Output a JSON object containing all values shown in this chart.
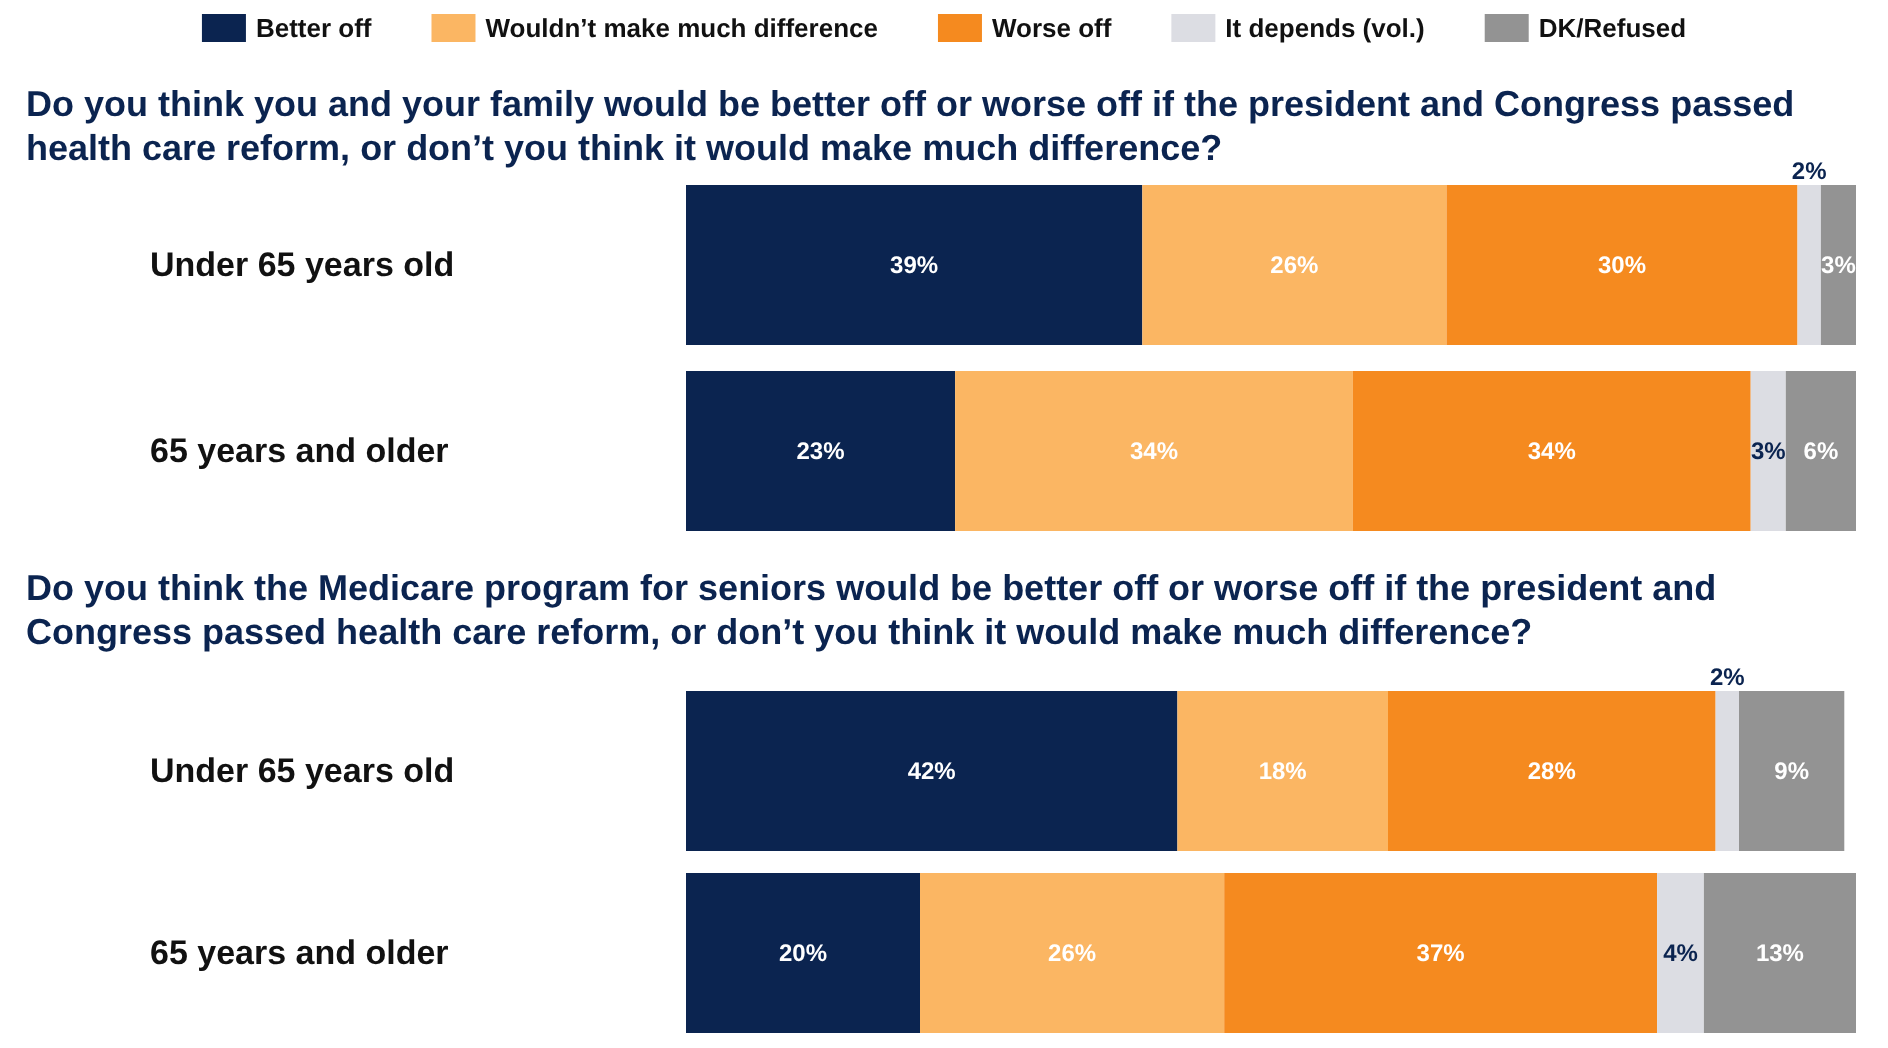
{
  "chart_data": [
    {
      "type": "bar",
      "orientation": "horizontal",
      "stacked": true,
      "title": "Do you think you and your family would be better off or worse off if the president and Congress passed health care reform, or don’t you think it would make much difference?",
      "categories": [
        "Under 65 years old",
        "65 years and older"
      ],
      "xlim": [
        0,
        100
      ],
      "tick_labels": false,
      "grid": false,
      "legend": "top",
      "series": [
        {
          "name": "Better off",
          "color": "#0b2450",
          "values": [
            39,
            23
          ],
          "value_labels": [
            "39%",
            "23%"
          ]
        },
        {
          "name": "Wouldn’t make much difference",
          "color": "#fbb663",
          "values": [
            26,
            34
          ],
          "value_labels": [
            "26%",
            "34%"
          ]
        },
        {
          "name": "Worse off",
          "color": "#f58a1f",
          "values": [
            30,
            34
          ],
          "value_labels": [
            "30%",
            "34%"
          ]
        },
        {
          "name": "It depends (vol.)",
          "color": "#dcdde3",
          "values": [
            2,
            3
          ],
          "value_labels": [
            "2%",
            "3%"
          ]
        },
        {
          "name": "DK/Refused",
          "color": "#939393",
          "values": [
            3,
            6
          ],
          "value_labels": [
            "3%",
            "6%"
          ]
        }
      ]
    },
    {
      "type": "bar",
      "orientation": "horizontal",
      "stacked": true,
      "title": "Do you think the Medicare program for seniors would be better off or worse off if the president and Congress passed health care reform, or don’t you think it would make much difference?",
      "categories": [
        "Under 65 years old",
        "65 years and older"
      ],
      "xlim": [
        0,
        100
      ],
      "tick_labels": false,
      "grid": false,
      "legend": false,
      "series": [
        {
          "color": "#0b2450",
          "values": [
            42,
            20
          ],
          "value_labels": [
            "42%",
            "20%"
          ]
        },
        {
          "color": "#fbb663",
          "values": [
            18,
            26
          ],
          "value_labels": [
            "18%",
            "26%"
          ]
        },
        {
          "color": "#f58a1f",
          "values": [
            28,
            37
          ],
          "value_labels": [
            "28%",
            "37%"
          ]
        },
        {
          "color": "#dcdde3",
          "values": [
            2,
            4
          ],
          "value_labels": [
            "2%",
            "4%"
          ]
        },
        {
          "color": "#939393",
          "values": [
            9,
            13
          ],
          "value_labels": [
            "9%",
            "13%"
          ]
        }
      ]
    }
  ]
}
